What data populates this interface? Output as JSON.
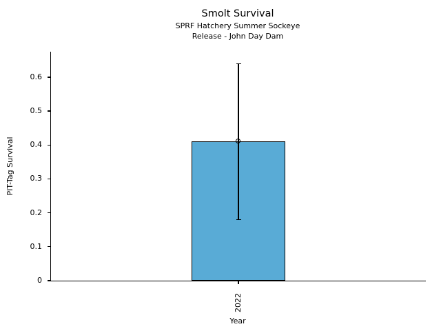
{
  "chart_data": {
    "type": "bar",
    "title": "Smolt Survival",
    "subtitle_line1": "SPRF Hatchery Summer Sockeye",
    "subtitle_line2": "Release - John Day Dam",
    "xlabel": "Year",
    "ylabel": "PIT-Tag Survival",
    "categories": [
      "2022"
    ],
    "values": [
      0.41
    ],
    "error_low": [
      0.18
    ],
    "error_high": [
      0.64
    ],
    "ylim": [
      0,
      0.675
    ],
    "yticks": [
      {
        "value": 0,
        "label": "0"
      },
      {
        "value": 0.1,
        "label": "0.1"
      },
      {
        "value": 0.2,
        "label": "0.2"
      },
      {
        "value": 0.3,
        "label": "0.3"
      },
      {
        "value": 0.4,
        "label": "0.4"
      },
      {
        "value": 0.5,
        "label": "0.5"
      },
      {
        "value": 0.6,
        "label": "0.6"
      }
    ],
    "grid": false,
    "legend": "none",
    "marker": "open-circle",
    "colors": {
      "bar_fill": "#59ABD6",
      "bar_edge": "#000000",
      "error_bar": "#000000",
      "text": "#000000",
      "background": "#ffffff"
    }
  }
}
